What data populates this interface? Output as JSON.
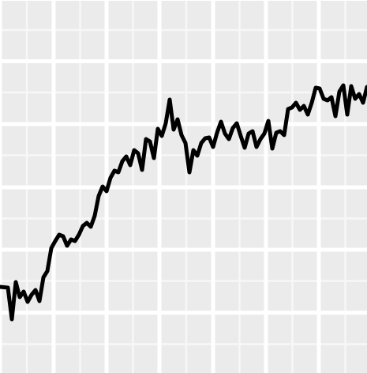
{
  "chart_data": {
    "type": "line",
    "title": "",
    "xlabel": "",
    "ylabel": "",
    "grid": true,
    "legend": "none",
    "xlim": [
      0,
      1
    ],
    "ylim": [
      0,
      1
    ],
    "major_x": [
      0.0,
      0.1461,
      0.2903,
      0.4344,
      0.5806,
      0.7247,
      0.8688
    ],
    "minor_x": [
      0.0731,
      0.2183,
      0.3624,
      0.5075,
      0.6527,
      0.7968,
      0.9409
    ],
    "major_y": [
      0.1619,
      0.3305,
      0.4979,
      0.6674,
      0.8358,
      1.0032
    ],
    "minor_y": [
      0.0773,
      0.2468,
      0.4142,
      0.5837,
      0.7521,
      0.9195
    ],
    "colors": {
      "panel": "#ebebeb",
      "grid_major": "#ffffff",
      "grid_minor": "#f7f7f7",
      "line": "#000000"
    },
    "series": [
      {
        "x": [
          0.0,
          0.0215,
          0.0323,
          0.043,
          0.0538,
          0.0645,
          0.0753,
          0.086,
          0.0968,
          0.1075,
          0.1183,
          0.129,
          0.1398,
          0.1505,
          0.1613,
          0.172,
          0.1828,
          0.1935,
          0.2043,
          0.2151,
          0.2258,
          0.2366,
          0.2473,
          0.2581,
          0.2688,
          0.2796,
          0.2903,
          0.3011,
          0.3118,
          0.3226,
          0.3333,
          0.3441,
          0.3548,
          0.3656,
          0.3763,
          0.3871,
          0.3978,
          0.4086,
          0.4194,
          0.4301,
          0.4409,
          0.4516,
          0.4624,
          0.4731,
          0.4839,
          0.4946,
          0.5054,
          0.5161,
          0.5269,
          0.5376,
          0.5484,
          0.5591,
          0.5699,
          0.5806,
          0.5914,
          0.6022,
          0.6129,
          0.6237,
          0.6344,
          0.6452,
          0.6559,
          0.6667,
          0.6774,
          0.6882,
          0.6989,
          0.7097,
          0.7204,
          0.7312,
          0.7419,
          0.7527,
          0.7634,
          0.7742,
          0.7849,
          0.7957,
          0.8065,
          0.8172,
          0.828,
          0.8387,
          0.8495,
          0.8602,
          0.871,
          0.8817,
          0.8925,
          0.9032,
          0.914,
          0.9247,
          0.9355,
          0.9462,
          0.957,
          0.9677,
          0.9785,
          0.9892,
          1.0
        ],
        "y": [
          0.2309,
          0.2288,
          0.1441,
          0.2436,
          0.2034,
          0.2182,
          0.1907,
          0.2097,
          0.2225,
          0.1928,
          0.2564,
          0.2733,
          0.3347,
          0.3538,
          0.3708,
          0.3665,
          0.3411,
          0.3581,
          0.3538,
          0.3708,
          0.3941,
          0.4026,
          0.3919,
          0.4216,
          0.4746,
          0.5,
          0.4873,
          0.5233,
          0.5424,
          0.5381,
          0.5678,
          0.5805,
          0.5572,
          0.5975,
          0.589,
          0.5445,
          0.6271,
          0.6208,
          0.5763,
          0.6546,
          0.6356,
          0.6695,
          0.7331,
          0.6525,
          0.6801,
          0.6377,
          0.6165,
          0.5381,
          0.5975,
          0.5826,
          0.6165,
          0.6292,
          0.6313,
          0.6059,
          0.6441,
          0.6737,
          0.6419,
          0.6271,
          0.6568,
          0.6695,
          0.6356,
          0.6038,
          0.6419,
          0.6483,
          0.6059,
          0.6271,
          0.6419,
          0.6758,
          0.6017,
          0.6441,
          0.6483,
          0.6377,
          0.7076,
          0.7119,
          0.7246,
          0.7055,
          0.7161,
          0.6928,
          0.7246,
          0.7648,
          0.7627,
          0.7352,
          0.7309,
          0.7394,
          0.6886,
          0.7542,
          0.7712,
          0.6928,
          0.7691,
          0.7352,
          0.7479,
          0.7246,
          0.7669
        ]
      }
    ]
  }
}
